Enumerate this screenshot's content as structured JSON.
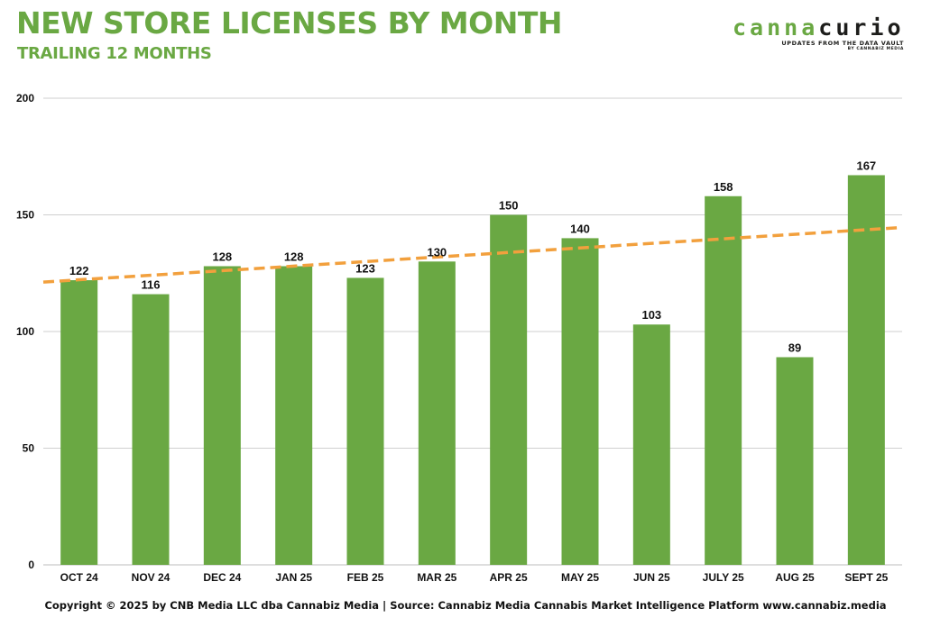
{
  "header": {
    "title": "NEW STORE LICENSES BY MONTH",
    "subtitle": "TRAILING 12 MONTHS"
  },
  "logo": {
    "word_part1": "canna",
    "word_part2": "curio",
    "tagline": "UPDATES FROM THE DATA VAULT",
    "byline": "BY CANNABIZ MEDIA"
  },
  "footer": {
    "text": "Copyright © 2025 by CNB Media LLC dba Cannabiz Media | Source: Cannabiz Media Cannabis Market Intelligence Platform www.cannabiz.media"
  },
  "colors": {
    "bar": "#6aa843",
    "trend": "#f2a03d",
    "grid": "#cfcfcf",
    "title": "#6aa843"
  },
  "chart_data": {
    "type": "bar",
    "title": "NEW STORE LICENSES BY MONTH",
    "subtitle": "TRAILING 12 MONTHS",
    "xlabel": "",
    "ylabel": "",
    "categories": [
      "OCT 24",
      "NOV 24",
      "DEC 24",
      "JAN 25",
      "FEB 25",
      "MAR 25",
      "APR 25",
      "MAY 25",
      "JUN 25",
      "JULY 25",
      "AUG 25",
      "SEPT 25"
    ],
    "values": [
      122,
      116,
      128,
      128,
      123,
      130,
      150,
      140,
      103,
      158,
      89,
      167
    ],
    "ylim": [
      0,
      200
    ],
    "yticks": [
      0,
      50,
      100,
      150,
      200
    ],
    "grid": true,
    "legend": "none",
    "trendline": {
      "type": "linear",
      "style": "dashed",
      "start": 121.2,
      "end": 144.6
    }
  }
}
